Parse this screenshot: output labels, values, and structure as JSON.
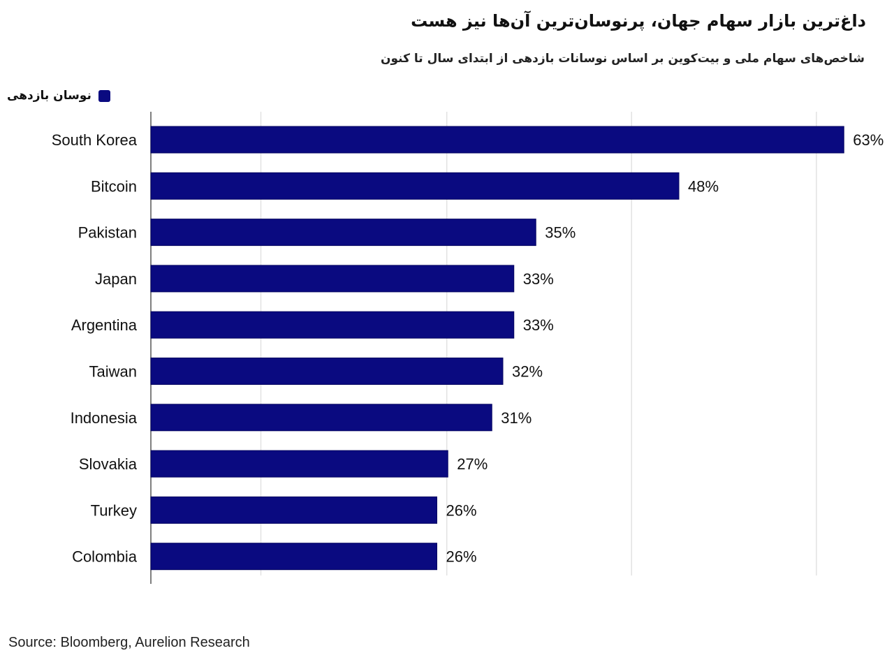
{
  "chart_data": {
    "type": "bar",
    "orientation": "horizontal",
    "title": "داغ‌ترین بازار سهام جهان، پرنوسان‌ترین آن‌ها نیز هست",
    "subtitle": "شاخص‌های سهام ملی و بیت‌کوین بر اساس نوسانات بازدهی از ابتدای سال تا کنون",
    "legend": {
      "label": "نوسان بازدهی",
      "placement": "top-left"
    },
    "categories": [
      "South Korea",
      "Bitcoin",
      "Pakistan",
      "Japan",
      "Argentina",
      "Taiwan",
      "Indonesia",
      "Slovakia",
      "Turkey",
      "Colombia"
    ],
    "series": [
      {
        "name": "نوسان بازدهی",
        "values": [
          63,
          48,
          35,
          33,
          33,
          32,
          31,
          27,
          26,
          26
        ],
        "color": "#0a0a80"
      }
    ],
    "data_labels": [
      "63%",
      "48%",
      "35%",
      "33%",
      "33%",
      "32%",
      "31%",
      "27%",
      "26%",
      "26%"
    ],
    "xlim": [
      0,
      64
    ],
    "grid": true,
    "source": "Source: Bloomberg, Aurelion Research"
  }
}
